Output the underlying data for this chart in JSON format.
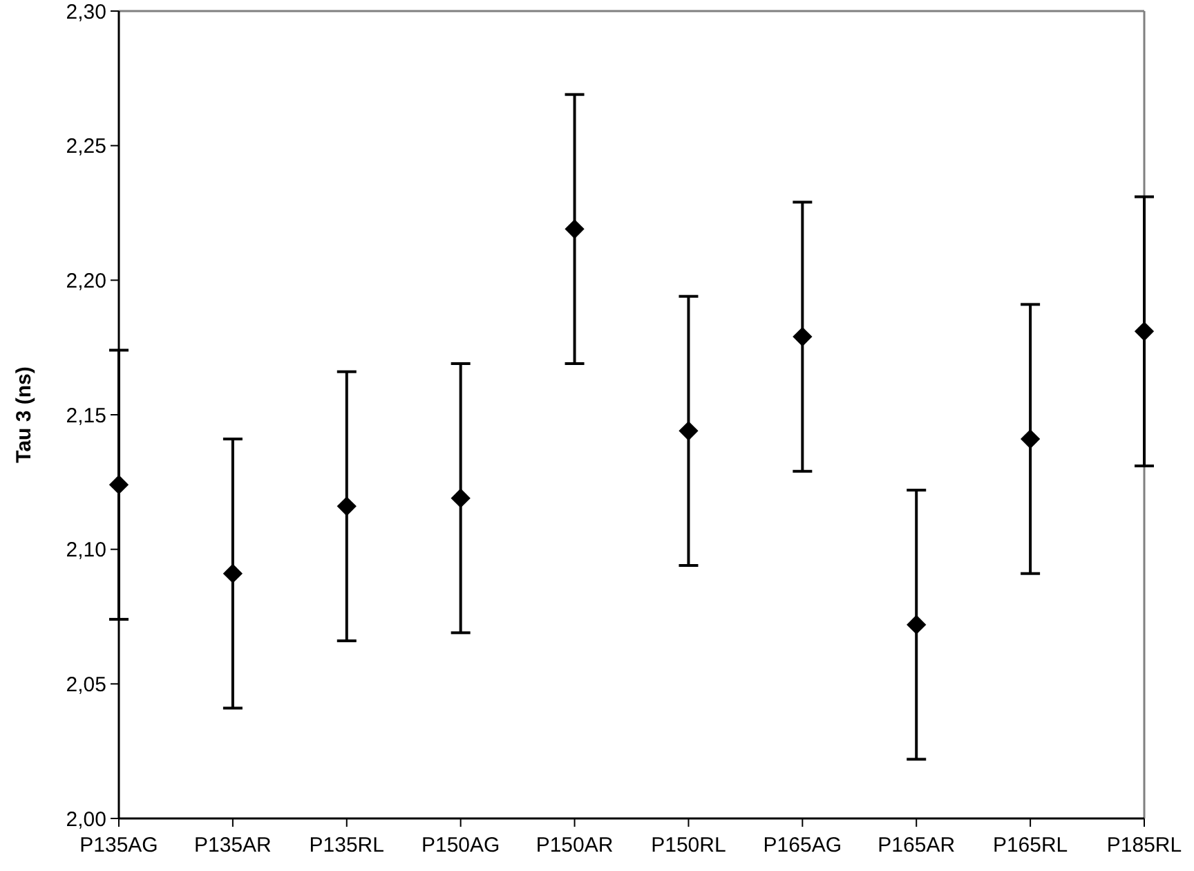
{
  "chart_data": {
    "type": "scatter",
    "ylabel": "Tau 3 (ns)",
    "categories": [
      "P135AG",
      "P135AR",
      "P135RL",
      "P150AG",
      "P150AR",
      "P150RL",
      "P165AG",
      "P165AR",
      "P165RL",
      "P185RL"
    ],
    "series": [
      {
        "color": "#000000",
        "values": [
          2.124,
          2.091,
          2.116,
          2.119,
          2.219,
          2.144,
          2.179,
          2.072,
          2.141,
          2.181
        ],
        "errors": [
          0.05,
          0.05,
          0.05,
          0.05,
          0.05,
          0.05,
          0.05,
          0.05,
          0.05,
          0.05
        ]
      }
    ],
    "ylim": [
      2.0,
      2.3
    ],
    "yticks": [
      {
        "value": 2.0,
        "label": "2,00"
      },
      {
        "value": 2.05,
        "label": "2,05"
      },
      {
        "value": 2.1,
        "label": "2,10"
      },
      {
        "value": 2.15,
        "label": "2,15"
      },
      {
        "value": 2.2,
        "label": "2,20"
      },
      {
        "value": 2.25,
        "label": "2,25"
      },
      {
        "value": 2.3,
        "label": "2,30"
      }
    ],
    "marker": "diamond",
    "grid": false
  }
}
